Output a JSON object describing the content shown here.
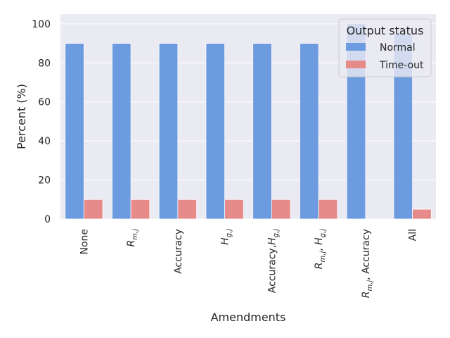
{
  "chart_data": {
    "type": "bar",
    "xlabel": "Amendments",
    "ylabel": "Percent (%)",
    "ylim": [
      0,
      105
    ],
    "yticks": [
      0,
      20,
      40,
      60,
      80,
      100
    ],
    "grid": true,
    "legend": {
      "title": "Output status",
      "placement": "top-right"
    },
    "categories": [
      {
        "label": "None",
        "math": false
      },
      {
        "label": "R_{m,j}",
        "math": true
      },
      {
        "label": "Accuracy",
        "math": false
      },
      {
        "label": "H_{g,j}",
        "math": true
      },
      {
        "label": "Accuracy,H_{g,j}",
        "math": true
      },
      {
        "label": "R_{m,j}, H_{g,j}",
        "math": true
      },
      {
        "label": "R_{m,j}, Accuracy",
        "math": true
      },
      {
        "label": "All",
        "math": false
      }
    ],
    "series": [
      {
        "name": "Normal",
        "color": "#6d9be0",
        "values": [
          90,
          90,
          90,
          90,
          90,
          90,
          100,
          95
        ]
      },
      {
        "name": "Time-out",
        "color": "#e68a8a",
        "values": [
          10,
          10,
          10,
          10,
          10,
          10,
          0,
          5
        ]
      }
    ],
    "plot_background": "#eaeaf2",
    "grid_color": "#ffffff"
  }
}
